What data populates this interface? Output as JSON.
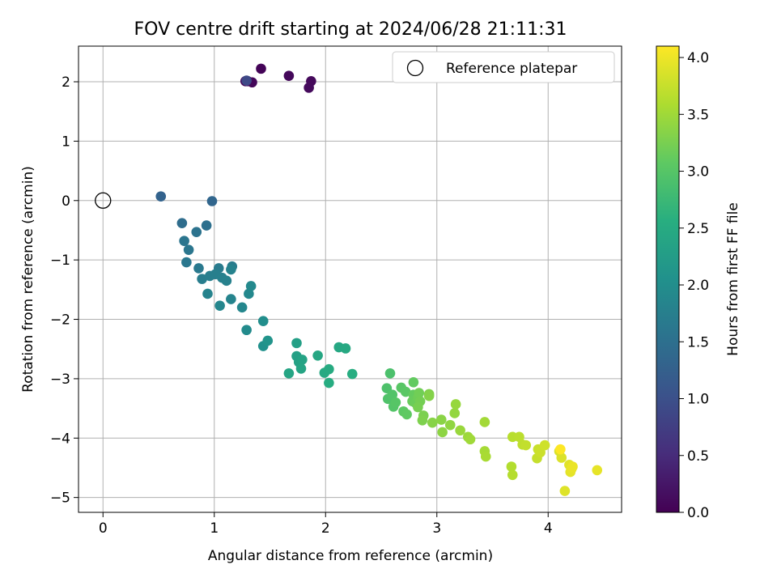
{
  "chart_data": {
    "type": "scatter",
    "title": "FOV centre drift starting at 2024/06/28 21:11:31",
    "xlabel": "Angular distance from reference (arcmin)",
    "ylabel": "Rotation from reference (arcmin)",
    "xlim": [
      -0.22,
      4.66
    ],
    "ylim": [
      -5.25,
      2.6
    ],
    "xticks": [
      0,
      1,
      2,
      3,
      4
    ],
    "yticks": [
      2,
      1,
      0,
      -1,
      -2,
      -3,
      -4,
      -5
    ],
    "grid": true,
    "legend": {
      "entries": [
        "Reference platepar"
      ],
      "placement": "top-right"
    },
    "reference_point": {
      "label": "Reference platepar",
      "x": 0,
      "y": 0
    },
    "colorbar": {
      "label": "Hours from first FF file",
      "range": [
        0.0,
        4.1
      ],
      "ticks": [
        "0.0",
        "0.5",
        "1.0",
        "1.5",
        "2.0",
        "2.5",
        "3.0",
        "3.5",
        "4.0"
      ],
      "colormap": "viridis"
    },
    "series": [
      {
        "points": [
          [
            1.42,
            2.22,
            0.04
          ],
          [
            1.28,
            2.01,
            0.05
          ],
          [
            1.3,
            2.01,
            0.06
          ],
          [
            1.34,
            1.99,
            0.07
          ],
          [
            1.67,
            2.1,
            0.08
          ],
          [
            1.87,
            2.01,
            0.09
          ],
          [
            1.85,
            1.9,
            0.1
          ],
          [
            1.29,
            2.02,
            0.9
          ],
          [
            0.52,
            0.07,
            1.3
          ],
          [
            0.98,
            -0.01,
            1.35
          ],
          [
            0.71,
            -0.38,
            1.45
          ],
          [
            0.93,
            -0.42,
            1.5
          ],
          [
            0.84,
            -0.53,
            1.55
          ],
          [
            0.73,
            -0.68,
            1.58
          ],
          [
            0.77,
            -0.83,
            1.6
          ],
          [
            0.75,
            -1.04,
            1.62
          ],
          [
            0.86,
            -1.14,
            1.65
          ],
          [
            1.04,
            -1.14,
            1.68
          ],
          [
            1.16,
            -1.11,
            1.7
          ],
          [
            0.89,
            -1.32,
            1.72
          ],
          [
            0.96,
            -1.27,
            1.74
          ],
          [
            1.01,
            -1.24,
            1.75
          ],
          [
            1.07,
            -1.3,
            1.77
          ],
          [
            1.11,
            -1.35,
            1.78
          ],
          [
            1.15,
            -1.16,
            1.8
          ],
          [
            0.94,
            -1.57,
            1.82
          ],
          [
            1.15,
            -1.66,
            1.84
          ],
          [
            1.05,
            -1.77,
            1.86
          ],
          [
            1.25,
            -1.8,
            1.88
          ],
          [
            1.31,
            -1.57,
            1.9
          ],
          [
            1.33,
            -1.44,
            1.92
          ],
          [
            1.29,
            -2.18,
            1.95
          ],
          [
            1.44,
            -2.03,
            2.0
          ],
          [
            1.44,
            -2.45,
            2.05
          ],
          [
            1.48,
            -2.36,
            2.1
          ],
          [
            1.74,
            -2.4,
            2.3
          ],
          [
            1.74,
            -2.62,
            2.32
          ],
          [
            1.76,
            -2.72,
            2.34
          ],
          [
            1.79,
            -2.68,
            2.36
          ],
          [
            1.78,
            -2.83,
            2.38
          ],
          [
            1.67,
            -2.91,
            2.4
          ],
          [
            1.93,
            -2.61,
            2.42
          ],
          [
            2.12,
            -2.47,
            2.44
          ],
          [
            2.18,
            -2.49,
            2.46
          ],
          [
            1.99,
            -2.9,
            2.48
          ],
          [
            2.03,
            -2.84,
            2.5
          ],
          [
            2.03,
            -3.07,
            2.52
          ],
          [
            2.24,
            -2.92,
            2.54
          ],
          [
            2.58,
            -2.91,
            2.9
          ],
          [
            2.55,
            -3.16,
            2.92
          ],
          [
            2.56,
            -3.34,
            2.94
          ],
          [
            2.6,
            -3.27,
            2.96
          ],
          [
            2.61,
            -3.47,
            2.98
          ],
          [
            2.63,
            -3.4,
            3.0
          ],
          [
            2.68,
            -3.15,
            3.02
          ],
          [
            2.72,
            -3.22,
            3.04
          ],
          [
            2.7,
            -3.55,
            3.06
          ],
          [
            2.73,
            -3.6,
            3.08
          ],
          [
            2.79,
            -3.06,
            3.1
          ],
          [
            2.79,
            -3.27,
            3.12
          ],
          [
            2.78,
            -3.38,
            3.14
          ],
          [
            2.81,
            -3.41,
            3.16
          ],
          [
            2.83,
            -3.32,
            3.18
          ],
          [
            2.84,
            -3.24,
            3.2
          ],
          [
            2.85,
            -3.38,
            3.22
          ],
          [
            2.83,
            -3.48,
            3.24
          ],
          [
            2.88,
            -3.62,
            3.26
          ],
          [
            2.87,
            -3.7,
            3.28
          ],
          [
            2.93,
            -3.26,
            3.3
          ],
          [
            2.93,
            -3.29,
            3.32
          ],
          [
            2.96,
            -3.74,
            3.34
          ],
          [
            3.04,
            -3.69,
            3.36
          ],
          [
            3.05,
            -3.9,
            3.38
          ],
          [
            3.12,
            -3.78,
            3.4
          ],
          [
            3.16,
            -3.58,
            3.42
          ],
          [
            3.17,
            -3.43,
            3.44
          ],
          [
            3.21,
            -3.87,
            3.46
          ],
          [
            3.28,
            -3.98,
            3.48
          ],
          [
            3.3,
            -4.02,
            3.5
          ],
          [
            3.43,
            -3.73,
            3.52
          ],
          [
            3.43,
            -4.22,
            3.54
          ],
          [
            3.44,
            -4.31,
            3.56
          ],
          [
            3.67,
            -4.48,
            3.62
          ],
          [
            3.68,
            -4.62,
            3.64
          ],
          [
            3.68,
            -3.98,
            3.66
          ],
          [
            3.74,
            -3.98,
            3.68
          ],
          [
            3.77,
            -4.11,
            3.7
          ],
          [
            3.8,
            -4.12,
            3.72
          ],
          [
            3.9,
            -4.34,
            3.74
          ],
          [
            3.91,
            -4.19,
            3.76
          ],
          [
            3.93,
            -4.24,
            3.78
          ],
          [
            3.97,
            -4.12,
            3.8
          ],
          [
            4.1,
            -4.22,
            3.86
          ],
          [
            4.12,
            -4.33,
            3.88
          ],
          [
            4.15,
            -4.89,
            3.9
          ],
          [
            4.19,
            -4.45,
            3.92
          ],
          [
            4.2,
            -4.57,
            3.94
          ],
          [
            4.21,
            -4.52,
            3.96
          ],
          [
            4.22,
            -4.48,
            3.98
          ],
          [
            4.44,
            -4.54,
            3.95
          ],
          [
            4.11,
            -4.19,
            4.1
          ]
        ]
      }
    ]
  }
}
